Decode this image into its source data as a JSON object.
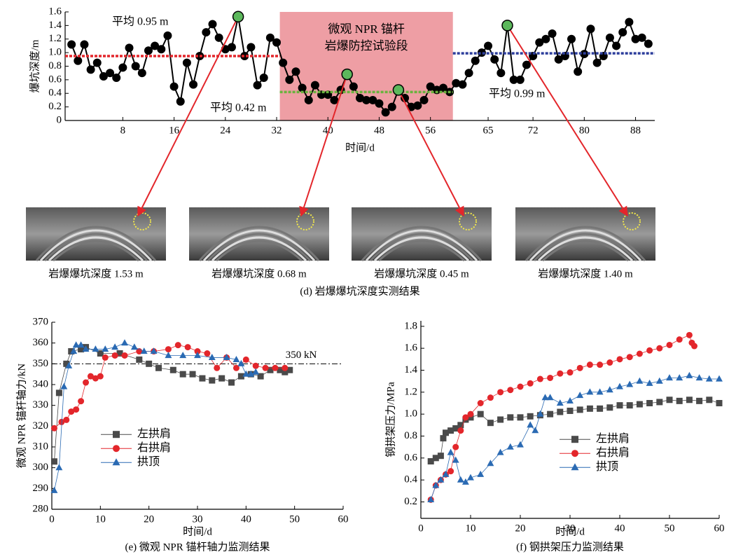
{
  "chart_data": [
    {
      "type": "line",
      "ylabel": "爆坑深度/m",
      "xlabel": "时间/d",
      "caption": "(d) 岩爆爆坑深度实测结果",
      "xlim": [
        -1,
        91
      ],
      "xticks": [
        8,
        16,
        24,
        32,
        40,
        48,
        56,
        65,
        72,
        80,
        88
      ],
      "ylim": [
        0,
        1.6
      ],
      "yticks": [
        0,
        0.2,
        0.4,
        0.6,
        0.8,
        {
          "value": 1,
          "label": "1.0"
        },
        1.2,
        1.4,
        1.6
      ],
      "region": {
        "from": 32.5,
        "to": 59.5,
        "color": "#ee9ea4",
        "text": [
          "微观 NPR 锚杆",
          "岩爆防控试验段"
        ]
      },
      "averages": [
        {
          "label": "平均 0.95 m",
          "value": 0.95,
          "from": -1,
          "to": 32.5,
          "color": "#e3262b"
        },
        {
          "label": "平均 0.42 m",
          "value": 0.42,
          "from": 32.5,
          "to": 59.5,
          "color": "#6ab23e"
        },
        {
          "label": "平均 0.99 m",
          "value": 0.99,
          "from": 59.5,
          "to": 91,
          "color": "#2d3e9c"
        }
      ],
      "series": [
        {
          "color": "#000000",
          "marker": "circle",
          "x": [
            0,
            1,
            2,
            3,
            4,
            5,
            6,
            7,
            8,
            9,
            10,
            11,
            12,
            13,
            14,
            15,
            16,
            17,
            18,
            19,
            20,
            21,
            22,
            23,
            24,
            25,
            26,
            27,
            28,
            29,
            30,
            31,
            32,
            33,
            34,
            35,
            36,
            37,
            38,
            39,
            40,
            41,
            42,
            43,
            44,
            45,
            46,
            47,
            48,
            49,
            50,
            51,
            52,
            53,
            54,
            55,
            56,
            57,
            58,
            59,
            60,
            61,
            62,
            63,
            64,
            65,
            66,
            67,
            68,
            69,
            70,
            71,
            72,
            73,
            74,
            75,
            76,
            77,
            78,
            79,
            80,
            81,
            82,
            83,
            84,
            85,
            86,
            87,
            88,
            89,
            90
          ],
          "values": [
            1.12,
            0.88,
            1.12,
            0.75,
            0.85,
            0.65,
            0.7,
            0.63,
            0.78,
            1.07,
            0.8,
            0.7,
            1.03,
            1.1,
            1.05,
            1.25,
            0.5,
            0.28,
            0.85,
            0.53,
            0.95,
            1.3,
            1.42,
            1.22,
            1.05,
            1.08,
            1.53,
            0.95,
            1.08,
            0.52,
            0.63,
            1.22,
            1.15,
            0.85,
            0.6,
            0.72,
            0.48,
            0.3,
            0.52,
            0.38,
            0.38,
            0.3,
            0.45,
            0.68,
            0.5,
            0.33,
            0.3,
            0.3,
            0.25,
            0.12,
            0.2,
            0.45,
            0.33,
            0.2,
            0.22,
            0.3,
            0.5,
            0.45,
            0.48,
            0.42,
            0.55,
            0.53,
            0.7,
            0.88,
            1.0,
            1.1,
            0.9,
            0.7,
            1.4,
            0.6,
            0.6,
            0.82,
            0.95,
            1.15,
            1.2,
            1.28,
            0.9,
            0.95,
            1.2,
            0.72,
            0.98,
            1.35,
            0.85,
            0.95,
            1.22,
            1.1,
            1.3,
            1.45,
            1.2,
            1.22,
            1.13
          ]
        }
      ],
      "photos": [
        {
          "caption": "岩爆爆坑深度 1.53 m",
          "x": 26,
          "y": 1.53
        },
        {
          "caption": "岩爆爆坑深度 0.68 m",
          "x": 43,
          "y": 0.68
        },
        {
          "caption": "岩爆爆坑深度 0.45 m",
          "x": 51,
          "y": 0.45
        },
        {
          "caption": "岩爆爆坑深度 1.40 m",
          "x": 68,
          "y": 1.4
        }
      ]
    },
    {
      "type": "line",
      "ylabel": "微观 NPR 锚杆轴力/kN",
      "xlabel": "时间/d",
      "caption": "(e) 微观 NPR 锚杆轴力监测结果",
      "xlim": [
        0,
        60
      ],
      "xticks": [
        0,
        10,
        20,
        30,
        40,
        50,
        60
      ],
      "ylim": [
        280,
        370
      ],
      "yticks": [
        280,
        290,
        300,
        310,
        320,
        330,
        340,
        350,
        360,
        370
      ],
      "reference": {
        "value": 350,
        "label": "350 kN"
      },
      "legend": "center left",
      "series": [
        {
          "name": "左拱肩",
          "color": "#4a4a4a",
          "marker": "square",
          "x": [
            0.5,
            1.5,
            3,
            4,
            6,
            7,
            10,
            14,
            18,
            20,
            22,
            25,
            27,
            29,
            31,
            33,
            35,
            37,
            39,
            41,
            43,
            45,
            47,
            48,
            49
          ],
          "values": [
            303,
            336,
            350,
            356,
            357,
            358,
            355,
            355,
            352,
            350,
            348,
            347,
            345,
            345,
            343,
            342,
            343,
            341,
            344,
            345,
            344,
            347,
            347,
            346,
            347
          ]
        },
        {
          "name": "右拱肩",
          "color": "#e3262b",
          "marker": "circle",
          "x": [
            0.5,
            2,
            3,
            4,
            5,
            6,
            7,
            8,
            9,
            10,
            11,
            13,
            15,
            18,
            21,
            24,
            26,
            28,
            30,
            32,
            34,
            36,
            38,
            40,
            42,
            44,
            46,
            48
          ],
          "values": [
            319,
            322,
            323,
            327,
            328,
            332,
            341,
            344,
            343,
            344,
            353,
            354,
            354,
            356,
            356,
            357,
            359,
            358,
            356,
            355,
            348,
            353,
            348,
            352,
            349,
            348,
            348,
            348
          ]
        },
        {
          "name": "拱顶",
          "color": "#2a6ab3",
          "marker": "triangle",
          "x": [
            0.5,
            1.5,
            2.5,
            3.5,
            4.5,
            5,
            6,
            7,
            9,
            11,
            13,
            15,
            17,
            19,
            21,
            24,
            27,
            30,
            33,
            36,
            38,
            39,
            40,
            41,
            42
          ],
          "values": [
            289,
            300,
            339,
            349,
            356,
            359,
            359,
            357,
            357,
            357,
            358,
            360,
            358,
            356,
            356,
            354,
            354,
            354,
            353,
            353,
            352,
            350,
            345,
            345,
            346
          ]
        }
      ]
    },
    {
      "type": "line",
      "ylabel": "钢拱架压力/MPa",
      "xlabel": "时间/d",
      "caption": "(f) 钢拱架压力监测结果",
      "xlim": [
        0,
        60
      ],
      "xticks": [
        0,
        10,
        20,
        30,
        40,
        50,
        60
      ],
      "ylim": [
        0.05,
        1.85
      ],
      "yticks": [
        0.2,
        0.4,
        0.6,
        0.8,
        {
          "value": 1,
          "label": "1.0"
        },
        1.2,
        1.4,
        1.6,
        1.8
      ],
      "legend": "center",
      "series": [
        {
          "name": "左拱肩",
          "color": "#4a4a4a",
          "marker": "square",
          "x": [
            2,
            3,
            4,
            4.5,
            5,
            6,
            7,
            8,
            9,
            10,
            12,
            14,
            16,
            18,
            20,
            22,
            24,
            26,
            28,
            30,
            32,
            34,
            36,
            38,
            40,
            42,
            44,
            46,
            48,
            50,
            52,
            54,
            56,
            58,
            60
          ],
          "values": [
            0.57,
            0.6,
            0.62,
            0.78,
            0.83,
            0.85,
            0.87,
            0.9,
            0.95,
            0.97,
            1.0,
            0.92,
            0.95,
            0.97,
            0.97,
            0.98,
            0.99,
            1.0,
            1.02,
            1.03,
            1.04,
            1.05,
            1.05,
            1.06,
            1.08,
            1.08,
            1.09,
            1.1,
            1.11,
            1.13,
            1.12,
            1.13,
            1.12,
            1.13,
            1.1
          ]
        },
        {
          "name": "右拱肩",
          "color": "#e3262b",
          "marker": "circle",
          "x": [
            2,
            3,
            4,
            5,
            6,
            7,
            8,
            9,
            10,
            12,
            14,
            16,
            18,
            20,
            22,
            24,
            26,
            28,
            30,
            32,
            34,
            36,
            38,
            40,
            42,
            44,
            46,
            48,
            50,
            52,
            54,
            54.5,
            55
          ],
          "values": [
            0.22,
            0.35,
            0.4,
            0.45,
            0.48,
            0.7,
            0.85,
            0.97,
            1.0,
            1.1,
            1.15,
            1.2,
            1.22,
            1.25,
            1.28,
            1.32,
            1.33,
            1.37,
            1.38,
            1.42,
            1.45,
            1.45,
            1.47,
            1.5,
            1.52,
            1.55,
            1.58,
            1.6,
            1.63,
            1.68,
            1.72,
            1.65,
            1.62
          ]
        },
        {
          "name": "拱顶",
          "color": "#2a6ab3",
          "marker": "triangle",
          "x": [
            2,
            3,
            4,
            5,
            6,
            7,
            8,
            9,
            10,
            12,
            14,
            16,
            18,
            20,
            22,
            23,
            24,
            25,
            26,
            28,
            30,
            32,
            34,
            36,
            38,
            40,
            42,
            44,
            46,
            48,
            50,
            52,
            54,
            56,
            58,
            60
          ],
          "values": [
            0.22,
            0.35,
            0.4,
            0.45,
            0.65,
            0.58,
            0.4,
            0.38,
            0.42,
            0.45,
            0.55,
            0.65,
            0.7,
            0.72,
            0.9,
            0.85,
            1.0,
            1.15,
            1.15,
            1.1,
            1.12,
            1.17,
            1.2,
            1.2,
            1.22,
            1.25,
            1.27,
            1.3,
            1.28,
            1.3,
            1.33,
            1.33,
            1.35,
            1.33,
            1.32,
            1.32
          ]
        }
      ]
    }
  ]
}
